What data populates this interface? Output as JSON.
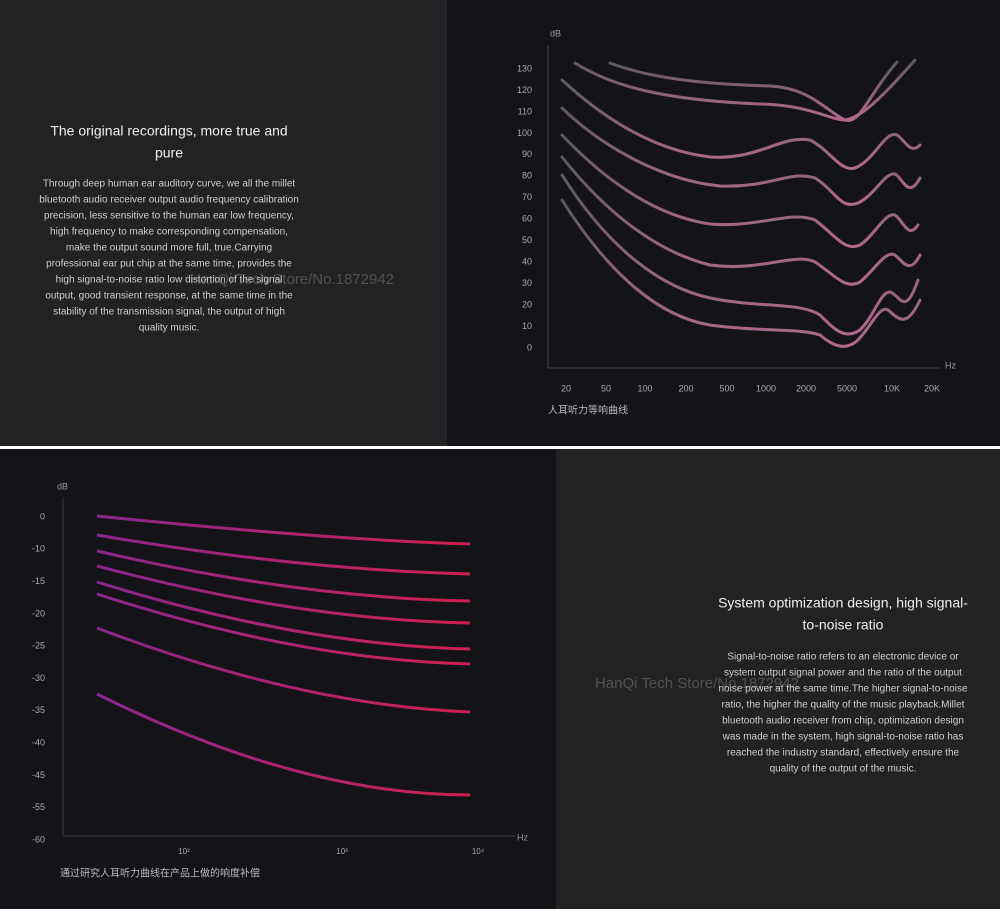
{
  "top_text": {
    "heading": [
      "The original recordings, more true and",
      "pure"
    ],
    "body": [
      "Through deep human ear auditory curve, we all the millet",
      "bluetooth audio receiver output audio frequency calibration",
      "precision, less sensitive to the human ear low frequency,",
      "high frequency to make corresponding compensation,",
      "make the output sound more full, true.Carrying",
      "professional ear put chip at the same time, provides the",
      "high signal-to-noise ratio low distortion of the signal",
      "output, good transient response, at the same time in the",
      "stability of the transmission signal, the output of high",
      "quality music."
    ],
    "watermark": "HanQi Tech Store/No.1872942"
  },
  "top_chart": {
    "y_unit": "dB",
    "x_unit": "Hz",
    "yticks": [
      "130",
      "120",
      "110",
      "100",
      "90",
      "80",
      "70",
      "60",
      "50",
      "40",
      "30",
      "20",
      "10",
      "0"
    ],
    "xticks": [
      "20",
      "50",
      "100",
      "200",
      "500",
      "1000",
      "2000",
      "5000",
      "10K",
      "20K"
    ],
    "caption": "人耳听力等响曲线"
  },
  "bottom_chart": {
    "y_unit": "dB",
    "x_unit": "Hz",
    "yticks": [
      "0",
      "-10",
      "-15",
      "-20",
      "-25",
      "-30",
      "-35",
      "-40",
      "-45",
      "-55",
      "-60"
    ],
    "xticks": [
      "10²",
      "10³",
      "10⁴"
    ],
    "caption": "通过研究人耳听力曲线在产品上做的响度补偿"
  },
  "bottom_text": {
    "heading": [
      "System optimization design, high signal-",
      "to-noise ratio"
    ],
    "body": [
      "Signal-to-noise ratio refers to an electronic device or",
      "system output signal power and the ratio of the output",
      "noise power at the same time.The higher signal-to-noise",
      "ratio, the higher the quality of the music playback.Millet",
      "bluetooth audio receiver from chip, optimization design",
      "was made in the system, high signal-to-noise ratio has",
      "reached the industry standard, effectively ensure the",
      "quality of the output of the music."
    ],
    "watermark": "HanQi Tech Store/No.1872942"
  }
}
